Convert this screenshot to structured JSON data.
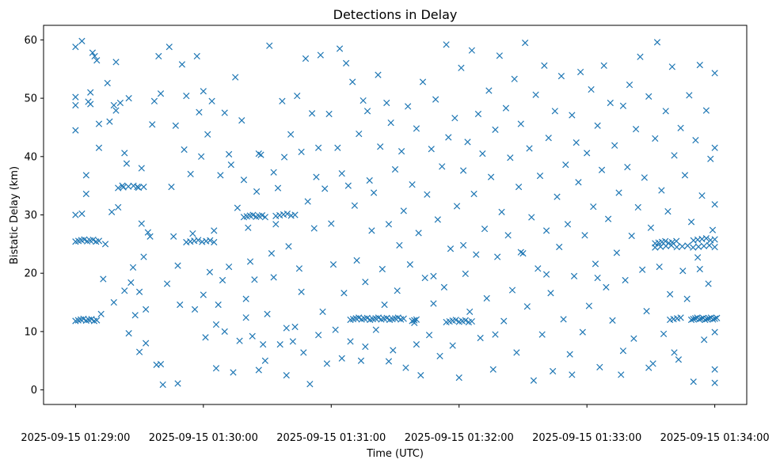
{
  "chart_data": {
    "type": "scatter",
    "title": "Detections in Delay",
    "xlabel": "Time (UTC)",
    "ylabel": "Bistatic Delay (km)",
    "marker": "x",
    "color": "#1f77b4",
    "xlim_seconds": [
      -15,
      315
    ],
    "ylim": [
      -2.5,
      62.5
    ],
    "x_ticks": [
      {
        "value": 0,
        "label": "2025-09-15 01:29:00"
      },
      {
        "value": 60,
        "label": "2025-09-15 01:30:00"
      },
      {
        "value": 120,
        "label": "2025-09-15 01:31:00"
      },
      {
        "value": 180,
        "label": "2025-09-15 01:32:00"
      },
      {
        "value": 240,
        "label": "2025-09-15 01:33:00"
      },
      {
        "value": 300,
        "label": "2025-09-15 01:34:00"
      }
    ],
    "y_ticks": [
      0,
      10,
      20,
      30,
      40,
      50,
      60
    ],
    "x_unit": "seconds after 2025-09-15 01:29:00",
    "bands": [
      {
        "y": 12.0,
        "x_from": 0,
        "x_to": 10,
        "n": 9
      },
      {
        "y": 25.6,
        "x_from": 0,
        "x_to": 11,
        "n": 9
      },
      {
        "y": 34.8,
        "x_from": 20,
        "x_to": 32,
        "n": 6
      },
      {
        "y": 25.5,
        "x_from": 52,
        "x_to": 65,
        "n": 8
      },
      {
        "y": 29.8,
        "x_from": 79,
        "x_to": 89,
        "n": 8
      },
      {
        "y": 30.0,
        "x_from": 94,
        "x_to": 103,
        "n": 6
      },
      {
        "y": 12.2,
        "x_from": 129,
        "x_to": 154,
        "n": 20
      },
      {
        "y": 12.0,
        "x_from": 158,
        "x_to": 160,
        "n": 3
      },
      {
        "y": 11.8,
        "x_from": 174,
        "x_to": 186,
        "n": 9
      },
      {
        "y": 25.3,
        "x_from": 272,
        "x_to": 280,
        "n": 6
      },
      {
        "y": 24.6,
        "x_from": 272,
        "x_to": 300,
        "n": 12
      },
      {
        "y": 12.2,
        "x_from": 279,
        "x_to": 284,
        "n": 4
      },
      {
        "y": 12.2,
        "x_from": 289,
        "x_to": 301,
        "n": 14
      },
      {
        "y": 25.8,
        "x_from": 290,
        "x_to": 300,
        "n": 6
      }
    ],
    "points": [
      [
        0,
        58.8
      ],
      [
        0,
        44.5
      ],
      [
        0,
        30
      ],
      [
        0,
        50.2
      ],
      [
        0,
        48.8
      ],
      [
        3,
        30.2
      ],
      [
        3,
        59.8
      ],
      [
        5,
        36.8
      ],
      [
        5,
        33.6
      ],
      [
        6,
        49.4
      ],
      [
        7,
        51
      ],
      [
        7,
        49
      ],
      [
        8,
        57.8
      ],
      [
        9,
        57.2
      ],
      [
        10,
        56.5
      ],
      [
        11,
        41.5
      ],
      [
        11,
        45.6
      ],
      [
        12,
        13
      ],
      [
        13,
        19
      ],
      [
        14,
        25
      ],
      [
        15,
        52.6
      ],
      [
        16,
        46
      ],
      [
        17,
        30.5
      ],
      [
        18,
        48.8
      ],
      [
        18,
        15
      ],
      [
        19,
        47.9
      ],
      [
        19,
        56.2
      ],
      [
        20,
        31.3
      ],
      [
        21,
        49.2
      ],
      [
        22,
        35
      ],
      [
        23,
        40.6
      ],
      [
        23,
        17
      ],
      [
        24,
        38.8
      ],
      [
        25,
        50
      ],
      [
        26,
        18.4
      ],
      [
        27,
        21
      ],
      [
        28,
        12.8
      ],
      [
        29,
        34.8
      ],
      [
        30,
        6.5
      ],
      [
        30,
        16.8
      ],
      [
        31,
        28.5
      ],
      [
        31,
        38
      ],
      [
        32,
        22.8
      ],
      [
        33,
        13.8
      ],
      [
        34,
        27
      ],
      [
        35,
        26.3
      ],
      [
        36,
        45.5
      ],
      [
        37,
        49.5
      ],
      [
        38,
        4.3
      ],
      [
        39,
        57.2
      ],
      [
        40,
        50.8
      ],
      [
        41,
        0.9
      ],
      [
        43,
        18.2
      ],
      [
        44,
        58.8
      ],
      [
        45,
        34.8
      ],
      [
        46,
        26.3
      ],
      [
        47,
        45.3
      ],
      [
        48,
        21.3
      ],
      [
        49,
        14.6
      ],
      [
        50,
        55.8
      ],
      [
        51,
        41.2
      ],
      [
        52,
        50.4
      ],
      [
        54,
        37
      ],
      [
        55,
        26.8
      ],
      [
        56,
        13.8
      ],
      [
        57,
        57.2
      ],
      [
        58,
        47.6
      ],
      [
        59,
        40
      ],
      [
        60,
        51.2
      ],
      [
        61,
        9
      ],
      [
        62,
        43.8
      ],
      [
        63,
        20.2
      ],
      [
        64,
        49.5
      ],
      [
        65,
        27.3
      ],
      [
        66,
        3.7
      ],
      [
        67,
        14.6
      ],
      [
        68,
        36.8
      ],
      [
        69,
        18.8
      ],
      [
        70,
        47.5
      ],
      [
        70,
        10
      ],
      [
        72,
        40.4
      ],
      [
        73,
        38.6
      ],
      [
        74,
        3
      ],
      [
        75,
        53.6
      ],
      [
        76,
        31.2
      ],
      [
        77,
        8.4
      ],
      [
        78,
        46.2
      ],
      [
        79,
        36
      ],
      [
        80,
        12.4
      ],
      [
        81,
        27.8
      ],
      [
        82,
        22
      ],
      [
        83,
        9.2
      ],
      [
        84,
        18.9
      ],
      [
        85,
        34
      ],
      [
        86,
        40.5
      ],
      [
        87,
        40.3
      ],
      [
        88,
        7.8
      ],
      [
        89,
        5
      ],
      [
        90,
        13
      ],
      [
        91,
        59
      ],
      [
        92,
        23.4
      ],
      [
        93,
        37.3
      ],
      [
        94,
        28.4
      ],
      [
        95,
        34.6
      ],
      [
        96,
        7.8
      ],
      [
        97,
        49.5
      ],
      [
        98,
        39.9
      ],
      [
        99,
        2.5
      ],
      [
        100,
        24.6
      ],
      [
        101,
        43.8
      ],
      [
        102,
        8.3
      ],
      [
        103,
        10.8
      ],
      [
        104,
        50.4
      ],
      [
        105,
        20.8
      ],
      [
        106,
        40.8
      ],
      [
        107,
        6.4
      ],
      [
        108,
        56.8
      ],
      [
        109,
        32.3
      ],
      [
        110,
        1
      ],
      [
        111,
        47.4
      ],
      [
        112,
        27.7
      ],
      [
        113,
        36.5
      ],
      [
        114,
        41.5
      ],
      [
        115,
        57.4
      ],
      [
        116,
        13.4
      ],
      [
        117,
        34.5
      ],
      [
        118,
        4.5
      ],
      [
        119,
        47.3
      ],
      [
        120,
        28.5
      ],
      [
        121,
        21.5
      ],
      [
        122,
        10.3
      ],
      [
        123,
        41.5
      ],
      [
        124,
        58.5
      ],
      [
        125,
        37.1
      ],
      [
        126,
        16.6
      ],
      [
        127,
        56
      ],
      [
        128,
        35
      ],
      [
        129,
        8.3
      ],
      [
        130,
        52.8
      ],
      [
        131,
        31.6
      ],
      [
        132,
        22.2
      ],
      [
        133,
        43.9
      ],
      [
        134,
        5
      ],
      [
        135,
        49.6
      ],
      [
        136,
        18.5
      ],
      [
        137,
        47.8
      ],
      [
        138,
        35.9
      ],
      [
        139,
        27.3
      ],
      [
        140,
        33.8
      ],
      [
        141,
        10.3
      ],
      [
        142,
        54
      ],
      [
        143,
        41.7
      ],
      [
        144,
        20.7
      ],
      [
        145,
        14.6
      ],
      [
        146,
        49.2
      ],
      [
        147,
        28.4
      ],
      [
        148,
        45.8
      ],
      [
        149,
        6.8
      ],
      [
        150,
        37.8
      ],
      [
        151,
        17
      ],
      [
        152,
        24.8
      ],
      [
        153,
        40.9
      ],
      [
        154,
        30.7
      ],
      [
        155,
        3.8
      ],
      [
        156,
        48.6
      ],
      [
        157,
        21.5
      ],
      [
        158,
        35.2
      ],
      [
        159,
        11.5
      ],
      [
        160,
        44.8
      ],
      [
        161,
        26.9
      ],
      [
        162,
        2.5
      ],
      [
        163,
        52.8
      ],
      [
        164,
        19.2
      ],
      [
        165,
        33.5
      ],
      [
        166,
        9.4
      ],
      [
        167,
        41.3
      ],
      [
        168,
        14.8
      ],
      [
        169,
        49.8
      ],
      [
        170,
        29.2
      ],
      [
        171,
        5.8
      ],
      [
        172,
        38.3
      ],
      [
        173,
        17.6
      ],
      [
        174,
        59.2
      ],
      [
        175,
        43.3
      ],
      [
        176,
        24.2
      ],
      [
        177,
        7.6
      ],
      [
        178,
        46.6
      ],
      [
        179,
        31.5
      ],
      [
        180,
        2.1
      ],
      [
        181,
        55.2
      ],
      [
        182,
        37.6
      ],
      [
        183,
        19.9
      ],
      [
        184,
        42.5
      ],
      [
        185,
        13.4
      ],
      [
        186,
        58.2
      ],
      [
        187,
        33.6
      ],
      [
        188,
        23.2
      ],
      [
        189,
        47.3
      ],
      [
        190,
        8.9
      ],
      [
        191,
        40.5
      ],
      [
        192,
        27.6
      ],
      [
        193,
        15.7
      ],
      [
        194,
        51.3
      ],
      [
        195,
        36.5
      ],
      [
        196,
        3.5
      ],
      [
        197,
        44.6
      ],
      [
        198,
        22.8
      ],
      [
        199,
        57.3
      ],
      [
        200,
        30.5
      ],
      [
        201,
        11.8
      ],
      [
        202,
        48.3
      ],
      [
        203,
        26.5
      ],
      [
        204,
        39.8
      ],
      [
        205,
        17.1
      ],
      [
        206,
        53.3
      ],
      [
        207,
        6.4
      ],
      [
        208,
        34.8
      ],
      [
        209,
        45.6
      ],
      [
        210,
        23.4
      ],
      [
        211,
        59.5
      ],
      [
        212,
        14.3
      ],
      [
        213,
        41.4
      ],
      [
        214,
        29.6
      ],
      [
        215,
        1.6
      ],
      [
        216,
        50.6
      ],
      [
        217,
        20.8
      ],
      [
        218,
        36.7
      ],
      [
        219,
        9.5
      ],
      [
        220,
        55.6
      ],
      [
        221,
        27.3
      ],
      [
        222,
        43.2
      ],
      [
        223,
        16.6
      ],
      [
        224,
        3.2
      ],
      [
        225,
        47.8
      ],
      [
        226,
        33.1
      ],
      [
        227,
        24.5
      ],
      [
        228,
        53.8
      ],
      [
        229,
        12.1
      ],
      [
        230,
        38.6
      ],
      [
        231,
        28.4
      ],
      [
        232,
        6.1
      ],
      [
        233,
        47.1
      ],
      [
        234,
        19.5
      ],
      [
        235,
        42.4
      ],
      [
        236,
        35.6
      ],
      [
        237,
        54.5
      ],
      [
        238,
        9.9
      ],
      [
        239,
        26.5
      ],
      [
        240,
        40.6
      ],
      [
        241,
        14.4
      ],
      [
        242,
        51.5
      ],
      [
        243,
        31.4
      ],
      [
        244,
        21.6
      ],
      [
        245,
        45.3
      ],
      [
        246,
        3.9
      ],
      [
        247,
        37.7
      ],
      [
        248,
        55.6
      ],
      [
        249,
        17.6
      ],
      [
        250,
        29.3
      ],
      [
        251,
        49.2
      ],
      [
        252,
        11.9
      ],
      [
        253,
        41.9
      ],
      [
        254,
        23.5
      ],
      [
        255,
        33.8
      ],
      [
        256,
        2.6
      ],
      [
        257,
        48.7
      ],
      [
        258,
        18.8
      ],
      [
        259,
        38.2
      ],
      [
        260,
        52.3
      ],
      [
        261,
        26.4
      ],
      [
        262,
        8.8
      ],
      [
        263,
        44.7
      ],
      [
        264,
        31.3
      ],
      [
        265,
        57.1
      ],
      [
        266,
        20.6
      ],
      [
        267,
        36.4
      ],
      [
        268,
        13.5
      ],
      [
        269,
        50.3
      ],
      [
        270,
        27.8
      ],
      [
        271,
        4.5
      ],
      [
        272,
        43.1
      ],
      [
        273,
        59.6
      ],
      [
        274,
        21.1
      ],
      [
        275,
        34.2
      ],
      [
        276,
        9.6
      ],
      [
        277,
        47.8
      ],
      [
        278,
        30.6
      ],
      [
        279,
        16.4
      ],
      [
        280,
        55.4
      ],
      [
        281,
        40.2
      ],
      [
        282,
        25.5
      ],
      [
        283,
        5.2
      ],
      [
        284,
        44.9
      ],
      [
        285,
        20.4
      ],
      [
        286,
        36.8
      ],
      [
        287,
        15.6
      ],
      [
        288,
        50.5
      ],
      [
        289,
        28.8
      ],
      [
        290,
        1.4
      ],
      [
        291,
        42.8
      ],
      [
        292,
        22.7
      ],
      [
        293,
        55.7
      ],
      [
        294,
        33.3
      ],
      [
        295,
        8.6
      ],
      [
        296,
        47.9
      ],
      [
        297,
        18.2
      ],
      [
        298,
        39.6
      ],
      [
        299,
        27.4
      ],
      [
        300,
        54.3
      ],
      [
        300,
        3.5
      ],
      [
        300,
        41.5
      ],
      [
        300,
        31.8
      ],
      [
        300,
        1.2
      ],
      [
        300,
        9.9
      ],
      [
        25,
        9.7
      ],
      [
        33,
        8
      ],
      [
        40,
        4.4
      ],
      [
        48,
        1.1
      ],
      [
        60,
        16.3
      ],
      [
        66,
        11.2
      ],
      [
        72,
        21.1
      ],
      [
        80,
        15.6
      ],
      [
        86,
        3.4
      ],
      [
        93,
        19.3
      ],
      [
        99,
        10.6
      ],
      [
        106,
        16.8
      ],
      [
        114,
        9.4
      ],
      [
        125,
        5.4
      ],
      [
        136,
        7.4
      ],
      [
        147,
        4.9
      ],
      [
        160,
        7.8
      ],
      [
        168,
        19.5
      ],
      [
        182,
        24.8
      ],
      [
        197,
        9.5
      ],
      [
        209,
        23.6
      ],
      [
        221,
        19.8
      ],
      [
        233,
        2.6
      ],
      [
        245,
        19.2
      ],
      [
        257,
        6.7
      ],
      [
        269,
        3.8
      ],
      [
        281,
        6.4
      ],
      [
        293,
        20.7
      ]
    ]
  }
}
